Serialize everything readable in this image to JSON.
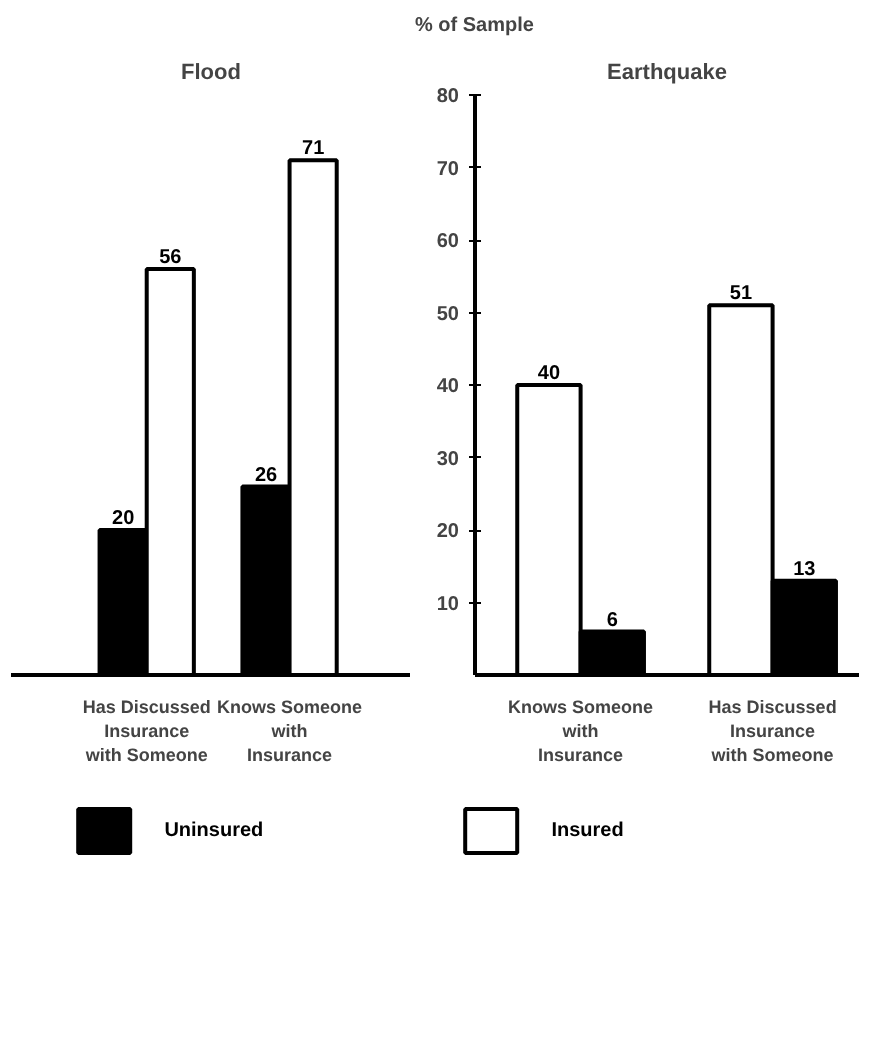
{
  "chart_data": [
    {
      "type": "bar",
      "title": "Flood",
      "categories": [
        "Has Discussed Insurance with Someone",
        "Knows Someone with Insurance"
      ],
      "series": [
        {
          "name": "Uninsured",
          "color": "#000000",
          "values": [
            20,
            26
          ]
        },
        {
          "name": "Insured",
          "color": "#ffffff",
          "values": [
            56,
            71
          ]
        }
      ],
      "ylim": [
        0,
        80
      ],
      "yticks": [
        10,
        20,
        30,
        40,
        50,
        60,
        70,
        80
      ],
      "tick_labels": "x",
      "data_labels": true,
      "legend": "bottom"
    },
    {
      "type": "bar",
      "title": "Earthquake",
      "ylabel": "% of Sample",
      "categories": [
        "Knows Someone with Insurance",
        "Has Discussed Insurance with Someone"
      ],
      "series": [
        {
          "color": "#ffffff",
          "values": [
            40,
            51
          ]
        },
        {
          "color": "#000000",
          "values": [
            6,
            13
          ]
        }
      ],
      "ylim": [
        0,
        80
      ],
      "yticks": [
        10,
        20,
        30,
        40,
        50,
        60,
        70,
        80
      ],
      "data_labels": true
    }
  ]
}
